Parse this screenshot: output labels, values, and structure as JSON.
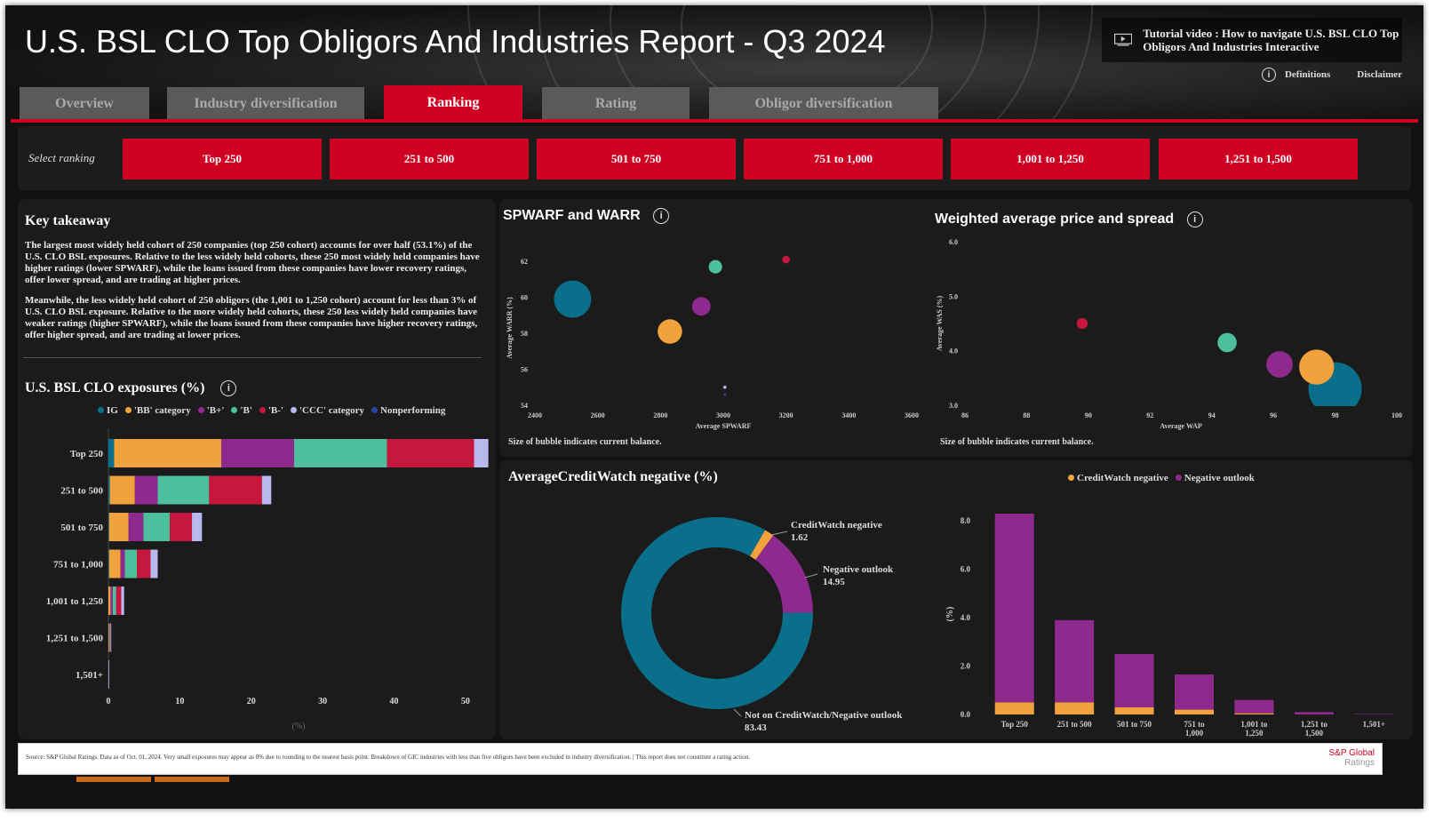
{
  "header": {
    "title": "U.S. BSL CLO Top Obligors And Industries Report - Q3 2024",
    "tutorial_label": "Tutorial video : How to navigate U.S. BSL CLO Top Obligors And Industries Interactive",
    "definitions_label": "Definitions",
    "disclaimer_label": "Disclaimer",
    "icon": "play-video-icon"
  },
  "tabs": [
    {
      "label": "Overview",
      "active": false
    },
    {
      "label": "Industry diversification",
      "active": false
    },
    {
      "label": "Ranking",
      "active": true
    },
    {
      "label": "Rating",
      "active": false
    },
    {
      "label": "Obligor diversification",
      "active": false
    }
  ],
  "ranking": {
    "select_label": "Select ranking",
    "buttons": [
      "Top 250",
      "251 to 500",
      "501 to 750",
      "751 to 1,000",
      "1,001 to 1,250",
      "1,251 to 1,500"
    ]
  },
  "takeaway": {
    "title": "Key takeaway",
    "p1": "The largest most widely held cohort of 250 companies (top 250 cohort) accounts for over half (53.1%) of the U.S. CLO BSL exposures. Relative to the less widely held cohorts, these 250 most widely held companies have higher ratings (lower SPWARF), while the loans issued from these companies have lower recovery ratings, offer lower spread, and are trading at higher prices.",
    "p2": "Meanwhile, the less widely held cohort of 250 obligors (the 1,001 to 1,250 cohort) account for less than 3% of U.S. CLO BSL exposure. Relative to the more widely held cohorts, these 250 less widely held companies have weaker ratings (higher SPWARF), while the loans issued from these companies have higher recovery ratings, offer higher spread, and are trading at lower prices."
  },
  "colors": {
    "red": "#d00022",
    "IG": "#0a6f8a",
    "BB": "#f2a23c",
    "B+": "#8e2a8e",
    "B": "#4dbf9c",
    "B-": "#c8173e",
    "CCC": "#b8b8ee",
    "Nonperforming": "#2b3fa8"
  },
  "exposures": {
    "title": "U.S. BSL CLO exposures (%)",
    "legend": [
      "IG",
      "'BB' category",
      "'B+'",
      "'B'",
      "'B-'",
      "'CCC' category",
      "Nonperforming"
    ],
    "xlabel": "(%)",
    "chart_data": {
      "type": "bar",
      "orientation": "horizontal",
      "stacked": true,
      "categories": [
        "Top 250",
        "251 to 500",
        "501 to 750",
        "751 to 1,000",
        "1,001 to 1,250",
        "1,251 to 1,500",
        "1,501+"
      ],
      "series": [
        {
          "name": "IG",
          "values": [
            0.8,
            0.2,
            0.1,
            0.1,
            0.0,
            0.0,
            0.0
          ]
        },
        {
          "name": "'BB' category",
          "values": [
            15.0,
            3.5,
            2.7,
            1.6,
            0.3,
            0.1,
            0.0
          ]
        },
        {
          "name": "'B+'",
          "values": [
            10.2,
            3.2,
            2.1,
            0.6,
            0.3,
            0.0,
            0.0
          ]
        },
        {
          "name": "'B'",
          "values": [
            13.0,
            7.2,
            3.7,
            1.7,
            0.5,
            0.1,
            0.0
          ]
        },
        {
          "name": "'B-'",
          "values": [
            12.2,
            7.4,
            3.1,
            1.9,
            0.7,
            0.1,
            0.0
          ]
        },
        {
          "name": "'CCC' category",
          "values": [
            2.0,
            1.3,
            1.4,
            1.0,
            0.4,
            0.1,
            0.1
          ]
        },
        {
          "name": "Nonperforming",
          "values": [
            0.0,
            0.0,
            0.0,
            0.0,
            0.0,
            0.0,
            0.0
          ]
        }
      ],
      "xticks": [
        "0",
        "10",
        "20",
        "30",
        "40",
        "50"
      ],
      "xlim": [
        0,
        53
      ]
    }
  },
  "spwarf": {
    "title": "SPWARF and WARR",
    "ylabel": "Average WARR (%)",
    "xlabel": "Average SPWARF",
    "note": "Size of bubble indicates current balance.",
    "chart_data": {
      "type": "scatter",
      "bubble": true,
      "xticks": [
        "2400",
        "2600",
        "2800",
        "3000",
        "3200",
        "3400",
        "3600"
      ],
      "yticks": [
        "54",
        "56",
        "58",
        "60",
        "62"
      ],
      "xlim": [
        2400,
        3600
      ],
      "ylim": [
        54,
        62.6
      ],
      "points": [
        {
          "cohort": "Top 250",
          "x": 2520,
          "y": 59.9,
          "size": 53.1,
          "color": "#0a6f8a"
        },
        {
          "cohort": "251 to 500",
          "x": 2830,
          "y": 58.1,
          "size": 22.8,
          "color": "#f2a23c"
        },
        {
          "cohort": "501 to 750",
          "x": 2930,
          "y": 59.5,
          "size": 13.1,
          "color": "#8e2a8e"
        },
        {
          "cohort": "751 to 1,000",
          "x": 2975,
          "y": 61.7,
          "size": 6.9,
          "color": "#4dbf9c"
        },
        {
          "cohort": "1,001 to 1,250",
          "x": 3200,
          "y": 62.1,
          "size": 2.2,
          "color": "#c8173e"
        },
        {
          "cohort": "1,251 to 1,500",
          "x": 3005,
          "y": 55.0,
          "size": 0.4,
          "color": "#b8b8ee"
        },
        {
          "cohort": "1,501+",
          "x": 3005,
          "y": 54.6,
          "size": 0.1,
          "color": "#2b3fa8"
        }
      ]
    }
  },
  "wap": {
    "title": "Weighted average price and spread",
    "ylabel": "Average WAS (%)",
    "xlabel": "Average WAP",
    "note": "Size of bubble indicates current balance.",
    "chart_data": {
      "type": "scatter",
      "bubble": true,
      "xticks": [
        "86",
        "88",
        "90",
        "92",
        "94",
        "96",
        "98",
        "100"
      ],
      "yticks": [
        "3.0",
        "4.0",
        "5.0",
        "6.0"
      ],
      "xlim": [
        86,
        100
      ],
      "ylim": [
        3.0,
        6.0
      ],
      "points": [
        {
          "cohort": "Top 250",
          "x": 98.0,
          "y": 3.3,
          "size": 53.1,
          "color": "#0a6f8a"
        },
        {
          "cohort": "251 to 500",
          "x": 97.4,
          "y": 3.7,
          "size": 22.8,
          "color": "#f2a23c"
        },
        {
          "cohort": "501 to 750",
          "x": 96.2,
          "y": 3.75,
          "size": 13.1,
          "color": "#8e2a8e"
        },
        {
          "cohort": "751 to 1,000",
          "x": 94.5,
          "y": 4.15,
          "size": 6.9,
          "color": "#4dbf9c"
        },
        {
          "cohort": "1,001 to 1,250",
          "x": 89.8,
          "y": 4.5,
          "size": 2.2,
          "color": "#c8173e"
        }
      ]
    }
  },
  "creditwatch": {
    "title": "AverageCreditWatch negative (%)",
    "legend": [
      "CreditWatch negative",
      "Negative outlook"
    ],
    "donut": {
      "chart_data": {
        "type": "pie",
        "donut": true,
        "slices": [
          {
            "label": "CreditWatch negative",
            "value": 1.62,
            "color": "#f2a23c"
          },
          {
            "label": "Negative outlook",
            "value": 14.95,
            "color": "#8e2a8e"
          },
          {
            "label": "Not on CreditWatch/Negative outlook",
            "value": 83.43,
            "color": "#0a6f8a"
          }
        ]
      },
      "labels": {
        "cw_name": "CreditWatch negative",
        "cw_value": "1.62",
        "no_name": "Negative outlook",
        "no_value": "14.95",
        "not_name": "Not on CreditWatch/Negative outlook",
        "not_value": "83.43"
      }
    },
    "bars": {
      "ylabel": "(%)",
      "chart_data": {
        "type": "bar",
        "stacked": true,
        "categories": [
          "Top 250",
          "251 to 500",
          "501 to 750",
          "751 to 1,000",
          "1,001 to 1,250",
          "1,251 to 1,500",
          "1,501+"
        ],
        "series": [
          {
            "name": "CreditWatch negative",
            "values": [
              0.5,
              0.5,
              0.3,
              0.2,
              0.05,
              0.0,
              0.0
            ]
          },
          {
            "name": "Negative outlook",
            "values": [
              7.8,
              3.4,
              2.2,
              1.45,
              0.55,
              0.1,
              0.02
            ]
          }
        ],
        "yticks": [
          "0.0",
          "2.0",
          "4.0",
          "6.0",
          "8.0"
        ],
        "ylim": [
          0,
          8.3
        ]
      }
    }
  },
  "footer": {
    "source": "Source: S&P Global Ratings. Data as of Oct. 01, 2024. Very small exposures may appear as 0% due to rounding to the nearest basis point. Breakdown of GIC industries with less than five obligors have been excluded in industry diversification. | This report does not constitute a rating action.",
    "logo_line1": "S&P Global",
    "logo_line2": "Ratings"
  }
}
